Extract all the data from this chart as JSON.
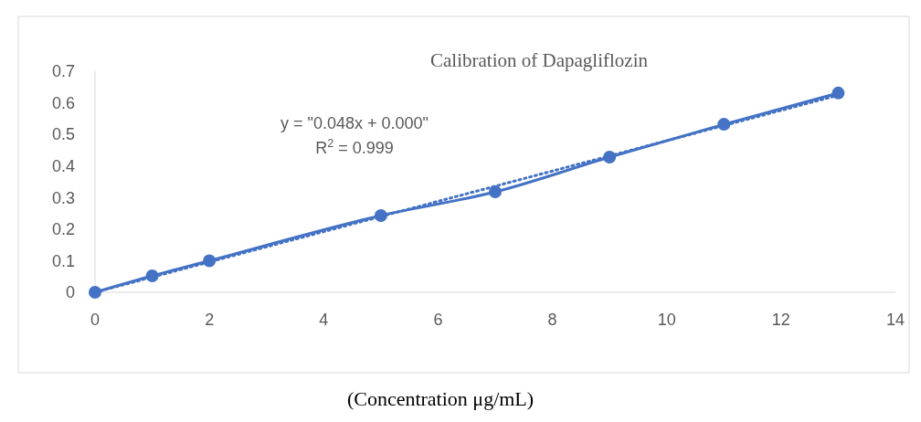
{
  "chart_data": {
    "type": "line",
    "title": "Calibration of Dapagliflozin",
    "xlabel": "(Concentration μg/mL)",
    "annotations": [
      "y = \"0.048x + 0.000\"",
      "R$^{2}$ = 0.999"
    ],
    "x": [
      0,
      1,
      2,
      5,
      7,
      9,
      11,
      13
    ],
    "series": [
      {
        "color": "#4472c4",
        "values": [
          0,
          0.052,
          0.1,
          0.243,
          0.318,
          0.428,
          0.532,
          0.631
        ],
        "marker": "circle",
        "line_style": "solid"
      },
      {
        "type": "line",
        "color": "#4472c4",
        "x": [
          0,
          13
        ],
        "values": [
          0,
          0.624
        ],
        "marker": "none",
        "line_style": "dotted"
      }
    ],
    "xlim": [
      0,
      14
    ],
    "xticks": [
      0,
      2,
      4,
      6,
      8,
      10,
      12,
      14
    ],
    "ylim": [
      0,
      0.7
    ],
    "yticks": [
      0,
      0.1,
      0.2,
      0.3,
      0.4,
      0.5,
      0.6,
      0.7
    ],
    "grid": false
  }
}
